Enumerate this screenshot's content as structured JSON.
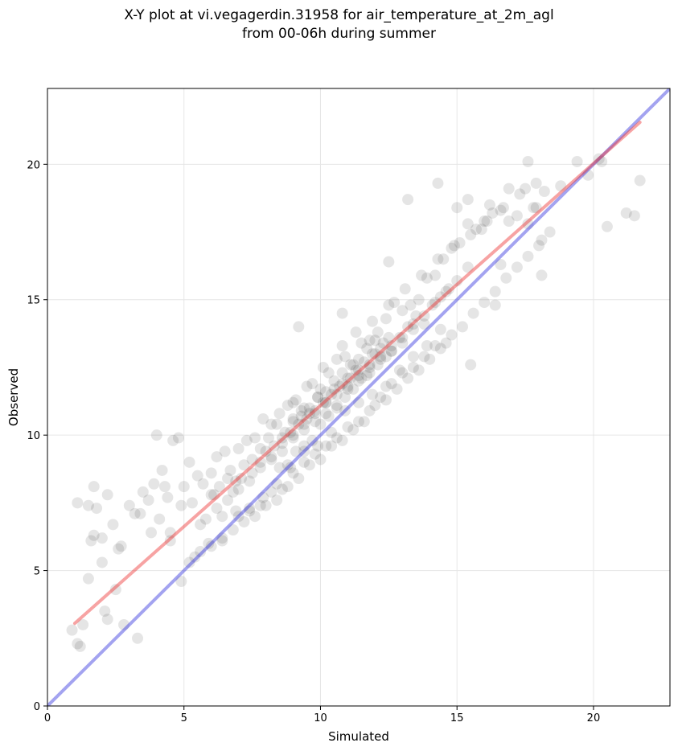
{
  "chart_data": {
    "type": "scatter",
    "title": "X-Y plot at vi.vegagerdin.31958 for air_temperature_at_2m_agl",
    "subtitle": "from 00-06h during summer",
    "xlabel": "Simulated",
    "ylabel": "Observed",
    "xlim": [
      0,
      22.8
    ],
    "ylim": [
      0,
      22.8
    ],
    "xticks": [
      "0",
      "5",
      "10",
      "15",
      "20"
    ],
    "yticks": [
      "0",
      "5",
      "10",
      "15",
      "20"
    ],
    "grid": true,
    "legend": "none",
    "point_color": "#000000",
    "point_opacity": 0.1,
    "fit_line": {
      "color": "#ee3333",
      "x": [
        1.0,
        21.7
      ],
      "y": [
        3.05,
        21.55
      ]
    },
    "identity_line": {
      "color": "#3333dd",
      "x": [
        0,
        22.8
      ],
      "y": [
        0,
        22.8
      ]
    },
    "points": {
      "x": [
        0.9,
        1.1,
        1.2,
        1.3,
        1.5,
        1.6,
        1.7,
        1.8,
        2.0,
        2.1,
        2.2,
        2.5,
        2.6,
        2.8,
        3.3,
        1.1,
        1.5,
        1.7,
        2.0,
        2.2,
        2.4,
        2.7,
        3.0,
        3.2,
        3.5,
        3.7,
        3.9,
        4.2,
        4.4,
        4.6,
        4.0,
        4.3,
        4.5,
        4.8,
        5.0,
        5.2,
        5.5,
        5.7,
        6.0,
        6.2,
        6.5,
        6.7,
        7.0,
        7.3,
        7.6,
        7.9,
        8.2,
        8.5,
        8.8,
        9.1,
        9.4,
        9.7,
        10.0,
        10.3,
        10.6,
        10.9,
        11.2,
        11.5,
        11.8,
        12.1,
        12.4,
        12.7,
        13.0,
        13.3,
        13.6,
        13.9,
        14.2,
        14.5,
        14.8,
        15.1,
        15.4,
        15.7,
        16.0,
        16.3,
        16.6,
        16.9,
        17.2,
        17.5,
        17.8,
        18.1,
        6.0,
        6.3,
        6.6,
        6.9,
        7.2,
        7.5,
        7.8,
        8.1,
        8.4,
        8.7,
        9.0,
        9.3,
        9.6,
        9.9,
        10.2,
        10.5,
        10.8,
        11.1,
        11.4,
        11.7,
        12.0,
        12.3,
        12.6,
        12.9,
        13.2,
        13.5,
        13.8,
        14.1,
        14.4,
        14.7,
        7.0,
        7.4,
        7.8,
        8.2,
        8.6,
        9.0,
        9.4,
        9.8,
        10.2,
        10.6,
        11.0,
        11.4,
        11.8,
        12.2,
        12.6,
        13.0,
        13.4,
        13.8,
        14.2,
        14.6,
        8.0,
        8.3,
        8.6,
        8.9,
        9.2,
        9.5,
        9.8,
        10.1,
        10.4,
        10.7,
        11.0,
        11.3,
        11.6,
        11.9,
        12.2,
        12.5,
        8.5,
        8.8,
        9.1,
        9.4,
        9.7,
        10.0,
        10.3,
        10.6,
        10.9,
        11.2,
        11.5,
        11.8,
        12.1,
        12.4,
        9.0,
        9.3,
        9.6,
        9.9,
        10.2,
        10.5,
        10.8,
        11.1,
        11.4,
        11.7,
        12.0,
        3.4,
        3.8,
        4.1,
        4.5,
        4.9,
        5.3,
        5.6,
        6.1,
        6.4,
        6.8,
        7.1,
        7.5,
        5.2,
        5.6,
        6.0,
        6.4,
        6.8,
        7.2,
        7.6,
        8.0,
        8.4,
        8.8,
        9.2,
        9.6,
        10.0,
        10.4,
        10.8,
        11.2,
        11.6,
        12.0,
        12.4,
        12.8,
        13.2,
        13.6,
        14.0,
        14.4,
        14.8,
        15.2,
        15.6,
        16.0,
        16.4,
        16.8,
        17.2,
        17.6,
        18.0,
        18.4,
        9.0,
        9.5,
        10.1,
        10.8,
        11.3,
        11.9,
        12.5,
        13.1,
        13.7,
        14.3,
        14.9,
        15.5,
        16.1,
        16.7,
        17.3,
        17.9,
        18.2,
        20.2,
        21.2,
        21.5,
        21.7,
        9.2,
        10.8,
        12.5,
        13.2,
        14.3,
        15.0,
        15.4,
        16.2,
        16.9,
        17.6,
        7.8,
        8.2,
        8.6,
        9.0,
        9.4,
        9.8,
        10.2,
        10.6,
        11.0,
        11.4,
        11.8,
        12.2,
        12.6,
        13.0,
        13.4,
        13.8,
        14.2,
        14.6,
        15.0,
        15.4,
        5.8,
        6.2,
        6.6,
        7.0,
        7.4,
        7.8,
        8.2,
        8.6,
        9.0,
        9.4,
        9.8,
        10.2,
        10.6,
        11.0,
        11.4,
        11.8,
        12.2,
        12.6,
        13.0,
        13.4,
        4.9,
        5.4,
        5.9,
        6.4,
        6.9,
        7.4,
        7.9,
        8.4,
        8.9,
        9.4,
        9.9,
        10.4,
        10.9,
        11.4,
        11.9,
        12.4,
        12.9,
        13.4,
        13.9,
        14.4,
        15.5,
        16.4,
        17.6,
        18.1,
        19.8,
        20.5,
        20.3,
        19.4,
        18.8,
        17.9,
        16.6,
        15.9
      ],
      "y": [
        2.8,
        2.3,
        2.2,
        3.0,
        4.7,
        6.1,
        8.1,
        7.3,
        5.3,
        3.5,
        3.2,
        4.3,
        5.8,
        3.0,
        2.5,
        7.5,
        7.4,
        6.3,
        6.2,
        7.8,
        6.7,
        5.9,
        7.4,
        7.1,
        7.9,
        7.6,
        8.2,
        8.7,
        7.7,
        9.8,
        10.0,
        8.1,
        6.4,
        9.9,
        8.1,
        9.0,
        8.5,
        8.2,
        8.6,
        9.2,
        9.4,
        8.7,
        9.5,
        9.8,
        9.9,
        10.6,
        10.4,
        10.8,
        11.1,
        11.3,
        11.0,
        11.9,
        11.7,
        12.3,
        12.8,
        12.9,
        12.6,
        13.4,
        13.5,
        13.8,
        14.3,
        14.9,
        14.6,
        14.8,
        15.0,
        15.8,
        15.9,
        16.5,
        16.9,
        17.1,
        17.8,
        17.6,
        17.9,
        18.2,
        18.3,
        17.9,
        18.1,
        19.1,
        18.4,
        17.2,
        7.8,
        8.1,
        8.4,
        8.3,
        8.9,
        9.1,
        9.5,
        9.9,
        10.4,
        10.1,
        10.6,
        10.9,
        10.8,
        11.4,
        11.2,
        11.7,
        11.9,
        12.1,
        12.4,
        12.2,
        13.0,
        13.4,
        13.1,
        13.6,
        14.0,
        14.4,
        14.1,
        14.8,
        15.1,
        15.4,
        7.0,
        7.2,
        7.4,
        7.9,
        8.0,
        8.6,
        9.0,
        9.3,
        9.6,
        9.9,
        10.3,
        10.5,
        10.9,
        11.4,
        11.9,
        12.3,
        12.5,
        12.9,
        13.3,
        13.4,
        9.4,
        9.6,
        9.9,
        10.1,
        10.4,
        10.6,
        10.9,
        11.2,
        11.5,
        11.8,
        12.1,
        12.4,
        12.7,
        13.0,
        13.2,
        13.6,
        8.8,
        8.9,
        9.4,
        9.6,
        9.8,
        10.4,
        10.7,
        11.0,
        11.4,
        11.7,
        12.1,
        12.3,
        12.6,
        12.9,
        10.5,
        10.7,
        11.0,
        11.4,
        11.6,
        12.0,
        12.3,
        12.6,
        12.8,
        13.2,
        13.5,
        7.1,
        6.4,
        6.9,
        6.1,
        7.4,
        7.5,
        6.7,
        7.8,
        7.0,
        7.9,
        8.4,
        8.6,
        5.3,
        5.7,
        5.9,
        6.1,
        6.5,
        6.8,
        7.0,
        7.4,
        7.6,
        8.1,
        8.4,
        8.9,
        9.1,
        9.6,
        9.8,
        10.2,
        10.5,
        11.1,
        11.3,
        11.7,
        12.1,
        12.4,
        12.8,
        13.2,
        13.7,
        14.0,
        14.5,
        14.9,
        15.3,
        15.8,
        16.2,
        16.6,
        17.0,
        17.5,
        11.2,
        11.8,
        12.5,
        13.3,
        13.8,
        14.2,
        14.8,
        15.4,
        15.9,
        16.5,
        17.0,
        17.4,
        17.9,
        18.4,
        18.9,
        19.3,
        19.0,
        20.2,
        18.2,
        18.1,
        19.4,
        14.0,
        14.5,
        16.4,
        18.7,
        19.3,
        18.4,
        18.7,
        18.5,
        19.1,
        20.1,
        9.0,
        9.2,
        9.7,
        10.0,
        10.4,
        10.8,
        11.2,
        11.5,
        11.8,
        12.2,
        12.6,
        12.9,
        13.3,
        13.6,
        14.1,
        14.4,
        14.9,
        15.3,
        15.7,
        16.2,
        6.9,
        7.3,
        7.6,
        8.0,
        8.3,
        8.8,
        9.1,
        9.4,
        9.9,
        10.2,
        10.5,
        10.8,
        11.1,
        11.7,
        12.0,
        12.5,
        12.8,
        13.1,
        13.4,
        13.9,
        4.6,
        5.5,
        6.0,
        6.2,
        7.2,
        7.3,
        7.7,
        8.2,
        8.8,
        9.4,
        9.6,
        10.1,
        10.9,
        11.2,
        11.5,
        11.8,
        12.4,
        12.9,
        13.3,
        13.9,
        12.6,
        14.8,
        17.8,
        15.9,
        19.6,
        17.7,
        20.1,
        20.1,
        19.2,
        18.4,
        16.3,
        17.6
      ]
    }
  }
}
